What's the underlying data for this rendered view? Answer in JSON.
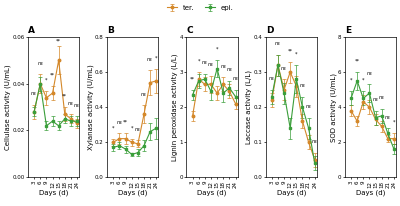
{
  "chart_data": [
    {
      "type": "line",
      "title": "A",
      "legend": "upper center",
      "xlabel": "Days (d)",
      "ylabel": "Cellulase activity (U/mL)",
      "x": [
        3,
        6,
        9,
        12,
        15,
        18,
        21,
        24
      ],
      "xlim": [
        0,
        25
      ],
      "xticks": [
        3,
        6,
        9,
        12,
        15,
        18,
        21,
        24
      ],
      "ylim": [
        0.0,
        0.06
      ],
      "yticks": [
        {
          "value": 0.0,
          "label": "0.00"
        },
        0.02,
        0.04,
        0.06
      ],
      "series": [
        {
          "name": "ter.",
          "color": "#D4882A",
          "marker": "circle",
          "values": [
            0.028,
            0.04,
            0.034,
            0.036,
            0.05,
            0.027,
            0.025,
            0.023
          ],
          "errors": [
            0.003,
            0.004,
            0.003,
            0.003,
            0.006,
            0.003,
            0.002,
            0.002
          ]
        },
        {
          "name": "epi.",
          "color": "#3A9E3A",
          "marker": "square",
          "values": [
            0.028,
            0.04,
            0.022,
            0.024,
            0.022,
            0.025,
            0.024,
            0.024
          ],
          "errors": [
            0.002,
            0.003,
            0.002,
            0.002,
            0.002,
            0.002,
            0.002,
            0.002
          ]
        }
      ],
      "annotations": [
        {
          "x": 3,
          "text": "ns"
        },
        {
          "x": 6,
          "text": "ns"
        },
        {
          "x": 9,
          "text": "*"
        },
        {
          "x": 12,
          "text": "**"
        },
        {
          "x": 15,
          "text": "**"
        },
        {
          "x": 18,
          "text": "**"
        },
        {
          "x": 21,
          "text": "ns"
        },
        {
          "x": 24,
          "text": "ns"
        }
      ]
    },
    {
      "type": "line",
      "title": "B",
      "xlabel": "Days (d)",
      "ylabel": "Xylanase activity (U/mL)",
      "x": [
        3,
        6,
        9,
        12,
        15,
        18,
        21,
        24
      ],
      "xlim": [
        0,
        25
      ],
      "xticks": [
        3,
        6,
        9,
        12,
        15,
        18,
        21,
        24
      ],
      "ylim": [
        0.0,
        0.8
      ],
      "yticks": [
        0.0,
        0.2,
        0.4,
        0.6,
        0.8
      ],
      "series": [
        {
          "name": "ter.",
          "color": "#D4882A",
          "marker": "circle",
          "values": [
            0.2,
            0.22,
            0.22,
            0.2,
            0.19,
            0.36,
            0.54,
            0.55
          ],
          "errors": [
            0.02,
            0.03,
            0.03,
            0.02,
            0.02,
            0.05,
            0.07,
            0.07
          ]
        },
        {
          "name": "epi.",
          "color": "#3A9E3A",
          "marker": "square",
          "values": [
            0.17,
            0.18,
            0.16,
            0.13,
            0.14,
            0.18,
            0.26,
            0.28
          ],
          "errors": [
            0.02,
            0.02,
            0.02,
            0.01,
            0.02,
            0.03,
            0.05,
            0.06
          ]
        }
      ],
      "annotations": [
        {
          "x": 3,
          "text": "*"
        },
        {
          "x": 6,
          "text": "ns"
        },
        {
          "x": 9,
          "text": "**"
        },
        {
          "x": 12,
          "text": "*"
        },
        {
          "x": 15,
          "text": "ns"
        },
        {
          "x": 18,
          "text": "ns"
        },
        {
          "x": 21,
          "text": "ns"
        },
        {
          "x": 24,
          "text": "*"
        }
      ]
    },
    {
      "type": "line",
      "title": "C",
      "xlabel": "Days (d)",
      "ylabel": "Lignin peroxidase activity (L/L)",
      "x": [
        3,
        6,
        9,
        12,
        15,
        18,
        21,
        24
      ],
      "xlim": [
        0,
        25
      ],
      "xticks": [
        3,
        6,
        9,
        12,
        15,
        18,
        21,
        24
      ],
      "ylim": [
        0,
        4
      ],
      "yticks": [
        0,
        1,
        2,
        3,
        4
      ],
      "series": [
        {
          "name": "ter.",
          "color": "#D4882A",
          "marker": "circle",
          "values": [
            1.75,
            2.8,
            2.65,
            2.65,
            2.4,
            2.65,
            2.45,
            2.1
          ],
          "errors": [
            0.15,
            0.2,
            0.2,
            0.25,
            0.2,
            0.2,
            0.2,
            0.15
          ]
        },
        {
          "name": "epi.",
          "color": "#3A9E3A",
          "marker": "square",
          "values": [
            2.35,
            2.75,
            2.8,
            2.45,
            3.1,
            2.4,
            2.55,
            2.3
          ],
          "errors": [
            0.15,
            0.2,
            0.15,
            0.25,
            0.25,
            0.25,
            0.2,
            0.2
          ]
        }
      ],
      "annotations": [
        {
          "x": 3,
          "text": "**"
        },
        {
          "x": 6,
          "text": "*"
        },
        {
          "x": 9,
          "text": "ns"
        },
        {
          "x": 12,
          "text": "ns"
        },
        {
          "x": 15,
          "text": "*"
        },
        {
          "x": 18,
          "text": "ns"
        },
        {
          "x": 21,
          "text": "ns"
        },
        {
          "x": 24,
          "text": "ns"
        }
      ]
    },
    {
      "type": "line",
      "title": "D",
      "xlabel": "Days (d)",
      "ylabel": "Laccase activity (L/L)",
      "x": [
        3,
        6,
        9,
        12,
        15,
        18,
        21,
        24
      ],
      "xlim": [
        0,
        25
      ],
      "xticks": [
        3,
        6,
        9,
        12,
        15,
        18,
        21,
        24
      ],
      "ylim": [
        0.0,
        0.4
      ],
      "yticks": [
        0.0,
        0.1,
        0.2,
        0.3,
        0.4
      ],
      "series": [
        {
          "name": "ter.",
          "color": "#D4882A",
          "marker": "circle",
          "values": [
            0.22,
            0.32,
            0.25,
            0.3,
            0.26,
            0.16,
            0.1,
            0.05
          ],
          "errors": [
            0.02,
            0.03,
            0.03,
            0.03,
            0.03,
            0.02,
            0.02,
            0.02
          ]
        },
        {
          "name": "epi.",
          "color": "#3A9E3A",
          "marker": "square",
          "values": [
            0.23,
            0.32,
            0.24,
            0.14,
            0.28,
            0.2,
            0.14,
            0.04
          ],
          "errors": [
            0.02,
            0.03,
            0.03,
            0.03,
            0.04,
            0.03,
            0.03,
            0.02
          ]
        }
      ],
      "annotations": [
        {
          "x": 3,
          "text": "ns"
        },
        {
          "x": 6,
          "text": "ns"
        },
        {
          "x": 9,
          "text": "ns"
        },
        {
          "x": 12,
          "text": "**"
        },
        {
          "x": 15,
          "text": "*"
        },
        {
          "x": 18,
          "text": "ns"
        },
        {
          "x": 21,
          "text": "ns"
        },
        {
          "x": 24,
          "text": "ns"
        }
      ]
    },
    {
      "type": "line",
      "title": "E",
      "xlabel": "Days (d)",
      "ylabel": "SOD activity (U/mL)",
      "x": [
        3,
        6,
        9,
        12,
        15,
        18,
        21,
        24
      ],
      "xlim": [
        0,
        25
      ],
      "xticks": [
        3,
        6,
        9,
        12,
        15,
        18,
        21,
        24
      ],
      "ylim": [
        0,
        8
      ],
      "yticks": [
        0,
        2,
        4,
        6,
        8
      ],
      "series": [
        {
          "name": "ter.",
          "color": "#D4882A",
          "marker": "circle",
          "values": [
            3.8,
            3.2,
            4.3,
            4.0,
            3.3,
            2.9,
            2.2,
            2.2
          ],
          "errors": [
            0.3,
            0.3,
            0.4,
            0.4,
            0.3,
            0.3,
            0.2,
            0.3
          ]
        },
        {
          "name": "epi.",
          "color": "#3A9E3A",
          "marker": "square",
          "values": [
            4.5,
            5.5,
            4.5,
            4.8,
            3.4,
            3.5,
            2.5,
            1.6
          ],
          "errors": [
            0.4,
            0.5,
            0.4,
            0.5,
            0.4,
            0.4,
            0.3,
            0.3
          ]
        }
      ],
      "annotations": [
        {
          "x": 3,
          "text": "*"
        },
        {
          "x": 6,
          "text": "**"
        },
        {
          "x": 9,
          "text": "*"
        },
        {
          "x": 12,
          "text": "ns"
        },
        {
          "x": 15,
          "text": "ns"
        },
        {
          "x": 18,
          "text": "ns"
        },
        {
          "x": 21,
          "text": "ns"
        },
        {
          "x": 24,
          "text": "*"
        }
      ]
    }
  ]
}
